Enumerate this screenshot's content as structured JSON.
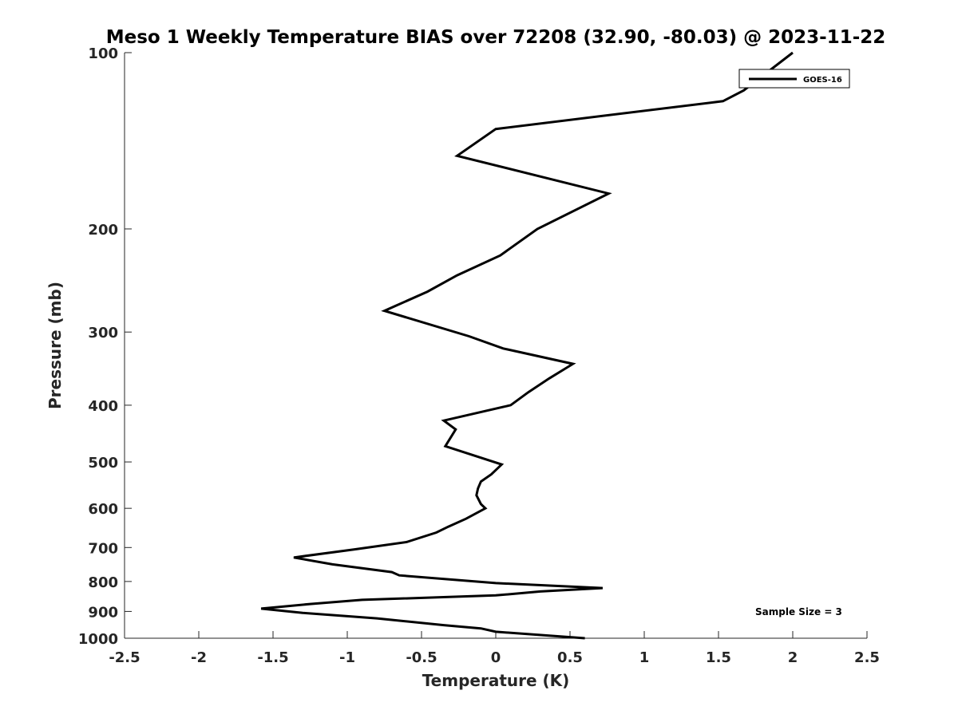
{
  "chart_data": {
    "type": "line",
    "title": "Meso 1 Weekly Temperature BIAS over 72208 (32.90, -80.03) @ 2023-11-22",
    "xlabel": "Temperature (K)",
    "ylabel": "Pressure (mb)",
    "xlim": [
      -2.5,
      2.5
    ],
    "ylim": [
      100,
      1000
    ],
    "y_scale": "log",
    "y_reversed": true,
    "grid": false,
    "x_ticks": [
      -2.5,
      -2,
      -1.5,
      -1,
      -0.5,
      0,
      0.5,
      1,
      1.5,
      2,
      2.5
    ],
    "x_tick_labels": [
      "-2.5",
      "-2",
      "-1.5",
      "-1",
      "-0.5",
      "0",
      "0.5",
      "1",
      "1.5",
      "2",
      "2.5"
    ],
    "y_ticks": [
      100,
      200,
      300,
      400,
      500,
      600,
      700,
      800,
      900,
      1000
    ],
    "y_tick_labels": [
      "100",
      "200",
      "300",
      "400",
      "500",
      "600",
      "700",
      "800",
      "900",
      "1000"
    ],
    "legend_position": "top-right",
    "series": [
      {
        "name": "GOES-16",
        "color": "#000000",
        "points": [
          [
            0.6,
            1000
          ],
          [
            0.0,
            975
          ],
          [
            -0.1,
            962
          ],
          [
            -0.35,
            950
          ],
          [
            -0.8,
            925
          ],
          [
            -1.3,
            905
          ],
          [
            -1.58,
            890
          ],
          [
            -1.25,
            874
          ],
          [
            -0.9,
            860
          ],
          [
            0.0,
            845
          ],
          [
            0.3,
            832
          ],
          [
            0.72,
            821
          ],
          [
            0.0,
            805
          ],
          [
            -0.65,
            781
          ],
          [
            -0.7,
            771
          ],
          [
            -1.1,
            748
          ],
          [
            -1.36,
            728
          ],
          [
            -0.95,
            705
          ],
          [
            -0.6,
            685
          ],
          [
            -0.4,
            660
          ],
          [
            -0.32,
            645
          ],
          [
            -0.2,
            625
          ],
          [
            -0.07,
            600
          ],
          [
            -0.1,
            590
          ],
          [
            -0.13,
            570
          ],
          [
            -0.12,
            555
          ],
          [
            -0.1,
            540
          ],
          [
            -0.03,
            525
          ],
          [
            0.04,
            505
          ],
          [
            -0.34,
            470
          ],
          [
            -0.27,
            440
          ],
          [
            -0.35,
            425
          ],
          [
            0.1,
            400
          ],
          [
            0.22,
            380
          ],
          [
            0.36,
            360
          ],
          [
            0.52,
            340
          ],
          [
            0.05,
            320
          ],
          [
            -0.18,
            305
          ],
          [
            -0.75,
            276
          ],
          [
            -0.46,
            256
          ],
          [
            -0.26,
            240
          ],
          [
            0.03,
            222
          ],
          [
            0.28,
            200
          ],
          [
            0.76,
            174
          ],
          [
            -0.26,
            150
          ],
          [
            0.0,
            135
          ],
          [
            1.53,
            121
          ],
          [
            1.67,
            116
          ],
          [
            2.0,
            100
          ]
        ]
      }
    ],
    "annotations": [
      "Sample Size = 3"
    ]
  }
}
